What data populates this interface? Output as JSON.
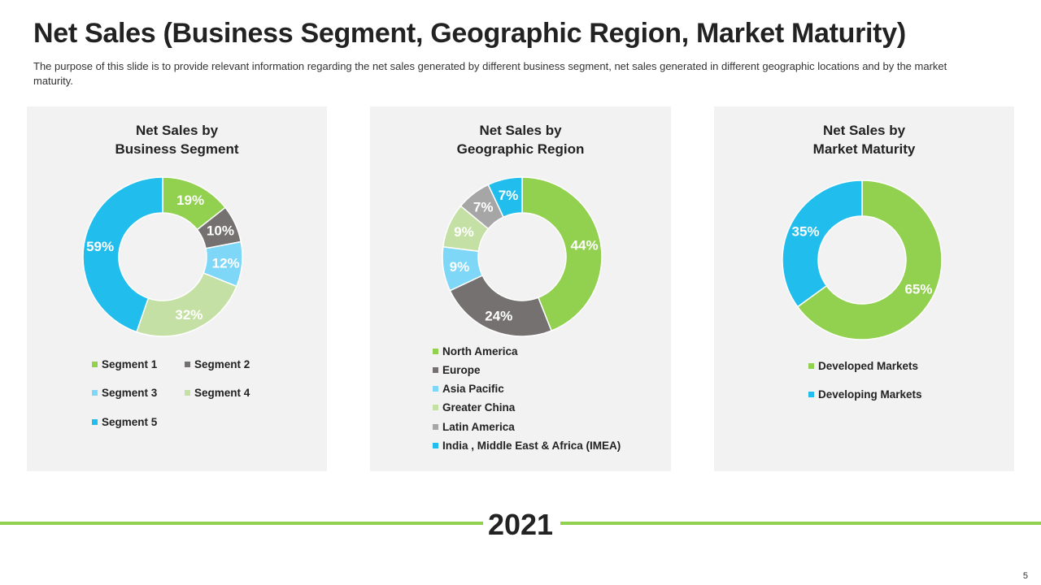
{
  "title": "Net Sales (Business Segment, Geographic Region, Market Maturity)",
  "subtitle": "The purpose of this slide is to provide relevant information regarding the net sales generated by different business segment, net sales generated in different geographic locations and by the market maturity.",
  "year": "2021",
  "page_number": "5",
  "colors": {
    "green": "#92d050",
    "dark_gray": "#767171",
    "light_blue": "#7fd7f7",
    "light_green": "#c5e0a5",
    "mid_gray": "#a6a6a6",
    "blue": "#21bdec",
    "panel_bg": "#f2f2f2"
  },
  "chart_data": [
    {
      "type": "pie",
      "title_line1": "Net Sales by",
      "title_line2": "Business Segment",
      "categories": [
        "Segment 1",
        "Segment 2",
        "Segment 3",
        "Segment 4",
        "Segment 5"
      ],
      "values": [
        19,
        10,
        12,
        32,
        59
      ],
      "labels": [
        "19%",
        "10%",
        "12%",
        "32%",
        "59%"
      ],
      "colors": [
        "#92d050",
        "#767171",
        "#7fd7f7",
        "#c5e0a5",
        "#21bdec"
      ],
      "label_colors": [
        "#ffffff",
        "#ffffff",
        "#ffffff",
        "#ffffff",
        "#ffffff"
      ]
    },
    {
      "type": "pie",
      "title_line1": "Net Sales by",
      "title_line2": "Geographic Region",
      "categories": [
        "North America",
        "Europe",
        "Asia Pacific",
        "Greater China",
        "Latin America",
        "India , Middle East & Africa (IMEA)"
      ],
      "values": [
        44,
        24,
        9,
        9,
        7,
        7
      ],
      "labels": [
        "44%",
        "24%",
        "9%",
        "9%",
        "7%",
        "7%"
      ],
      "colors": [
        "#92d050",
        "#767171",
        "#7fd7f7",
        "#c5e0a5",
        "#a6a6a6",
        "#21bdec"
      ],
      "label_colors": [
        "#ffffff",
        "#ffffff",
        "#ffffff",
        "#ffffff",
        "#ffffff",
        "#ffffff"
      ]
    },
    {
      "type": "pie",
      "title_line1": "Net Sales by",
      "title_line2": "Market Maturity",
      "categories": [
        "Developed Markets",
        "Developing Markets"
      ],
      "values": [
        65,
        35
      ],
      "labels": [
        "65%",
        "35%"
      ],
      "colors": [
        "#92d050",
        "#21bdec"
      ],
      "label_colors": [
        "#ffffff",
        "#ffffff"
      ]
    }
  ]
}
